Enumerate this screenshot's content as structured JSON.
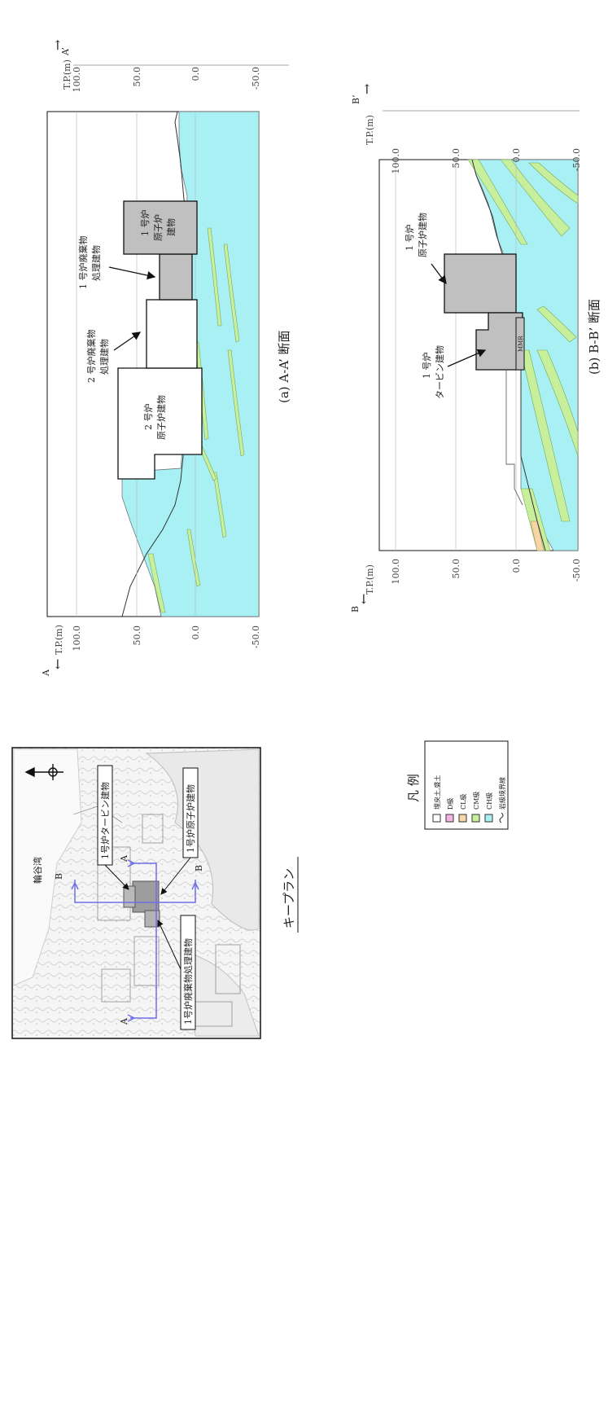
{
  "colors": {
    "bedrock_ch": "#a8f0f4",
    "bedrock_cm": "#c8ef9c",
    "bedrock_cl": "#f6d5a6",
    "bedrock_d": "#f3b4e4",
    "fill_soil": "#ffffff",
    "building_gray": "#c0c0c0",
    "section_line": "#6e6ee6"
  },
  "keyplan": {
    "caption": "キープラン",
    "labels": {
      "unit1_turbine": "1号炉タービン建物",
      "unit1_reactor": "1号炉原子炉建物",
      "unit1_waste": "1号炉廃棄物処理建物"
    },
    "section_marks": {
      "a": "A",
      "b": "B"
    },
    "sea_text": "輪谷湾"
  },
  "legend": {
    "title": "凡 例",
    "items": [
      {
        "label": "埋戻土,盛土",
        "color": "#ffffff"
      },
      {
        "label": "D級",
        "color": "#f3b4e4"
      },
      {
        "label": "CL級",
        "color": "#f6d5a6"
      },
      {
        "label": "CM級",
        "color": "#c8ef9c"
      },
      {
        "label": "CH級",
        "color": "#a8f0f4"
      },
      {
        "label": "岩級境界線",
        "color": ""
      }
    ]
  },
  "section_a": {
    "caption": "(a) A-A’ 断面",
    "start": "A",
    "end": "A’",
    "axis_unit": "T.P.(m)",
    "ticks": [
      "100.0",
      "50.0",
      "0.0",
      "-50.0"
    ],
    "labels": {
      "unit2_reactor": [
        "2 号炉",
        "原子炉建物"
      ],
      "unit2_waste": [
        "2 号炉廃棄物",
        "処理建物"
      ],
      "unit1_waste": [
        "1 号炉廃棄物",
        "処理建物"
      ],
      "unit1_reactor": [
        "1 号炉",
        "原子炉",
        "建物"
      ]
    }
  },
  "section_b": {
    "caption": "(b) B-B’ 断面",
    "start": "B",
    "end": "B’",
    "axis_unit": "T.P.(m)",
    "ticks": [
      "100.0",
      "50.0",
      "0.0",
      "-50.0"
    ],
    "labels": {
      "unit1_reactor": [
        "1 号炉",
        "原子炉建物"
      ],
      "unit1_turbine": [
        "1 号炉",
        "タービン建物"
      ],
      "mark": "MMR"
    }
  }
}
